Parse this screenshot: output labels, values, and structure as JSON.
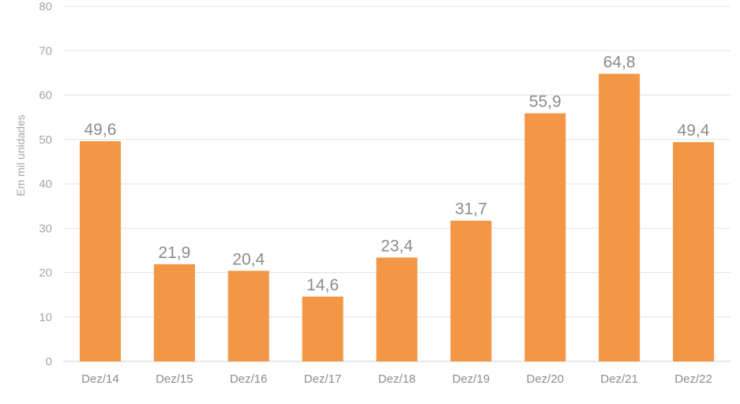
{
  "chart_data": {
    "type": "bar",
    "categories": [
      "Dez/14",
      "Dez/15",
      "Dez/16",
      "Dez/17",
      "Dez/18",
      "Dez/19",
      "Dez/20",
      "Dez/21",
      "Dez/22"
    ],
    "values": [
      49.6,
      21.9,
      20.4,
      14.6,
      23.4,
      31.7,
      55.9,
      64.8,
      49.4
    ],
    "value_labels": [
      "49,6",
      "21,9",
      "20,4",
      "14,6",
      "23,4",
      "31,7",
      "55,9",
      "64,8",
      "49,4"
    ],
    "title": "",
    "xlabel": "",
    "ylabel": "Em mil unidades",
    "ylim": [
      0,
      80
    ],
    "yticks": [
      0,
      10,
      20,
      30,
      40,
      50,
      60,
      70,
      80
    ],
    "grid": true,
    "bar_color": "#f39646"
  }
}
